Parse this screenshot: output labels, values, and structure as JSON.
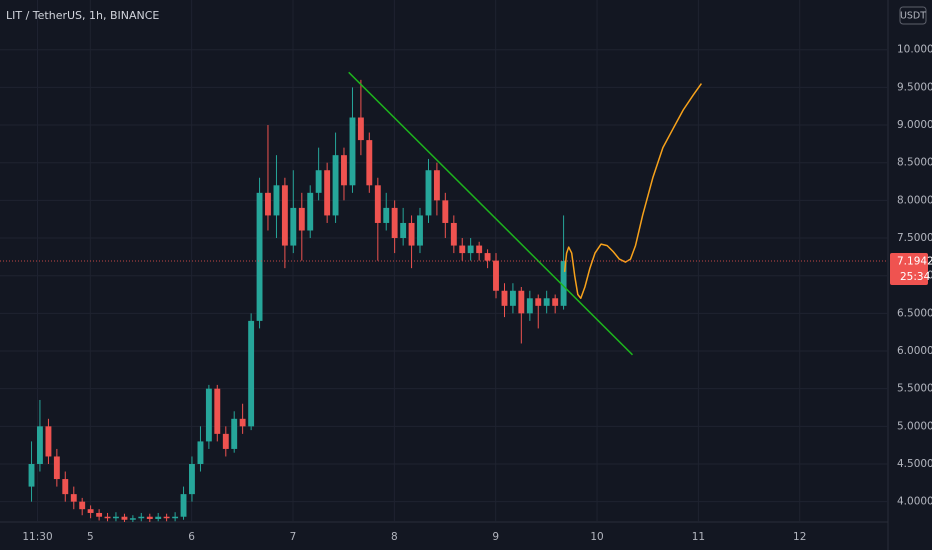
{
  "chart_data": {
    "type": "candlestick",
    "title": "LIT / TetherUS, 1h, BINANCE",
    "currency": "USDT",
    "countdown": "25:34",
    "x": [
      4.42,
      4.503,
      4.587,
      4.67,
      4.753,
      4.837,
      4.92,
      5.003,
      5.087,
      5.17,
      5.253,
      5.337,
      5.42,
      5.503,
      5.587,
      5.67,
      5.753,
      5.837,
      5.92,
      6.003,
      6.087,
      6.17,
      6.253,
      6.337,
      6.42,
      6.503,
      6.587,
      6.67,
      6.753,
      6.837,
      6.92,
      7.003,
      7.087,
      7.17,
      7.253,
      7.337,
      7.42,
      7.503,
      7.587,
      7.67,
      7.753,
      7.837,
      7.92,
      8.003,
      8.087,
      8.17,
      8.253,
      8.337,
      8.42,
      8.503,
      8.587,
      8.67,
      8.753,
      8.837,
      8.92,
      9.003,
      9.087,
      9.17,
      9.253,
      9.337,
      9.42,
      9.503,
      9.587,
      9.67
    ],
    "open": [
      4.2,
      4.5,
      5.0,
      4.6,
      4.3,
      4.1,
      4.0,
      3.9,
      3.85,
      3.8,
      3.78,
      3.8,
      3.76,
      3.78,
      3.8,
      3.77,
      3.8,
      3.78,
      3.8,
      4.1,
      4.5,
      4.8,
      5.5,
      4.9,
      4.7,
      5.1,
      5.0,
      6.4,
      8.1,
      7.8,
      8.2,
      7.4,
      7.9,
      7.6,
      8.1,
      8.4,
      7.8,
      8.6,
      8.2,
      9.1,
      8.8,
      8.2,
      7.7,
      7.9,
      7.5,
      7.7,
      7.4,
      7.8,
      8.4,
      8.0,
      7.7,
      7.4,
      7.3,
      7.4,
      7.3,
      7.2,
      6.8,
      6.6,
      6.8,
      6.5,
      6.7,
      6.6,
      6.7,
      6.6
    ],
    "high": [
      4.8,
      5.35,
      5.1,
      4.7,
      4.4,
      4.2,
      4.05,
      3.95,
      3.9,
      3.85,
      3.86,
      3.84,
      3.82,
      3.85,
      3.84,
      3.85,
      3.84,
      3.86,
      4.2,
      4.6,
      5.0,
      5.55,
      5.55,
      5.0,
      5.2,
      5.3,
      6.5,
      8.3,
      9.0,
      8.6,
      8.3,
      8.4,
      8.1,
      8.2,
      8.7,
      8.5,
      8.9,
      8.7,
      9.5,
      9.6,
      8.9,
      8.3,
      8.1,
      8.0,
      7.9,
      7.8,
      7.9,
      8.55,
      8.5,
      8.1,
      7.8,
      7.5,
      7.5,
      7.45,
      7.35,
      7.3,
      6.9,
      6.9,
      6.85,
      6.8,
      6.75,
      6.8,
      6.75,
      7.8
    ],
    "low": [
      4.0,
      4.4,
      4.5,
      4.2,
      4.0,
      3.9,
      3.82,
      3.78,
      3.75,
      3.74,
      3.74,
      3.73,
      3.73,
      3.74,
      3.73,
      3.74,
      3.74,
      3.74,
      3.76,
      4.0,
      4.4,
      4.7,
      4.8,
      4.6,
      4.65,
      4.9,
      4.95,
      6.3,
      7.6,
      7.5,
      7.1,
      7.3,
      7.2,
      7.5,
      8.0,
      7.7,
      7.7,
      8.0,
      8.1,
      8.6,
      8.1,
      7.2,
      7.6,
      7.3,
      7.4,
      7.1,
      7.3,
      7.7,
      7.8,
      7.5,
      7.3,
      7.2,
      7.2,
      7.2,
      7.1,
      6.7,
      6.45,
      6.5,
      6.1,
      6.4,
      6.3,
      6.5,
      6.5,
      6.55
    ],
    "close": [
      4.5,
      5.0,
      4.6,
      4.3,
      4.1,
      4.0,
      3.9,
      3.85,
      3.8,
      3.78,
      3.8,
      3.76,
      3.78,
      3.8,
      3.77,
      3.8,
      3.78,
      3.8,
      4.1,
      4.5,
      4.8,
      5.5,
      4.9,
      4.7,
      5.1,
      5.0,
      6.4,
      8.1,
      7.8,
      8.2,
      7.4,
      7.9,
      7.6,
      8.1,
      8.4,
      7.8,
      8.6,
      8.2,
      9.1,
      8.8,
      8.2,
      7.7,
      7.9,
      7.5,
      7.7,
      7.4,
      7.8,
      8.4,
      8.0,
      7.7,
      7.4,
      7.3,
      7.4,
      7.3,
      7.2,
      6.8,
      6.6,
      6.8,
      6.5,
      6.7,
      6.6,
      6.7,
      6.6,
      7.1942
    ],
    "up_color": "#26a69a",
    "down_color": "#ef5350",
    "drawings": [
      {
        "color": "#1db41d",
        "x": [
          7.55,
          10.35
        ],
        "y": [
          9.7,
          5.95
        ]
      },
      {
        "color": "#f7a21b",
        "x": [
          9.68,
          9.7,
          9.72,
          9.75,
          9.78,
          9.81,
          9.84,
          9.88,
          9.93,
          9.98,
          10.04,
          10.1,
          10.16,
          10.22,
          10.28,
          10.33,
          10.38,
          10.45,
          10.55,
          10.65,
          10.75,
          10.85,
          10.95,
          11.03
        ],
        "y": [
          7.05,
          7.3,
          7.38,
          7.3,
          7.0,
          6.75,
          6.7,
          6.85,
          7.1,
          7.3,
          7.42,
          7.4,
          7.32,
          7.22,
          7.18,
          7.22,
          7.4,
          7.8,
          8.3,
          8.7,
          8.95,
          9.2,
          9.4,
          9.55
        ]
      }
    ],
    "xlim": [
      4.109,
      12.871
    ],
    "ylim": [
      3.73,
      10.66
    ],
    "xticks": [
      {
        "value": 4.479,
        "label": "11:30"
      },
      5,
      6,
      7,
      8,
      9,
      10,
      11,
      12
    ],
    "yticks": [
      {
        "value": 4,
        "label": "4.0000"
      },
      {
        "value": 4.5,
        "label": "4.5000"
      },
      {
        "value": 5,
        "label": "5.0000"
      },
      {
        "value": 5.5,
        "label": "5.5000"
      },
      {
        "value": 6,
        "label": "6.0000"
      },
      {
        "value": 6.5,
        "label": "6.5000"
      },
      {
        "value": 7,
        "label": "7.0000"
      },
      {
        "value": 7.5,
        "label": "7.5000"
      },
      {
        "value": 8,
        "label": "8.0000"
      },
      {
        "value": 8.5,
        "label": "8.5000"
      },
      {
        "value": 9,
        "label": "9.0000"
      },
      {
        "value": 9.5,
        "label": "9.5000"
      },
      {
        "value": 10,
        "label": "10.0000"
      }
    ],
    "grid": true
  }
}
